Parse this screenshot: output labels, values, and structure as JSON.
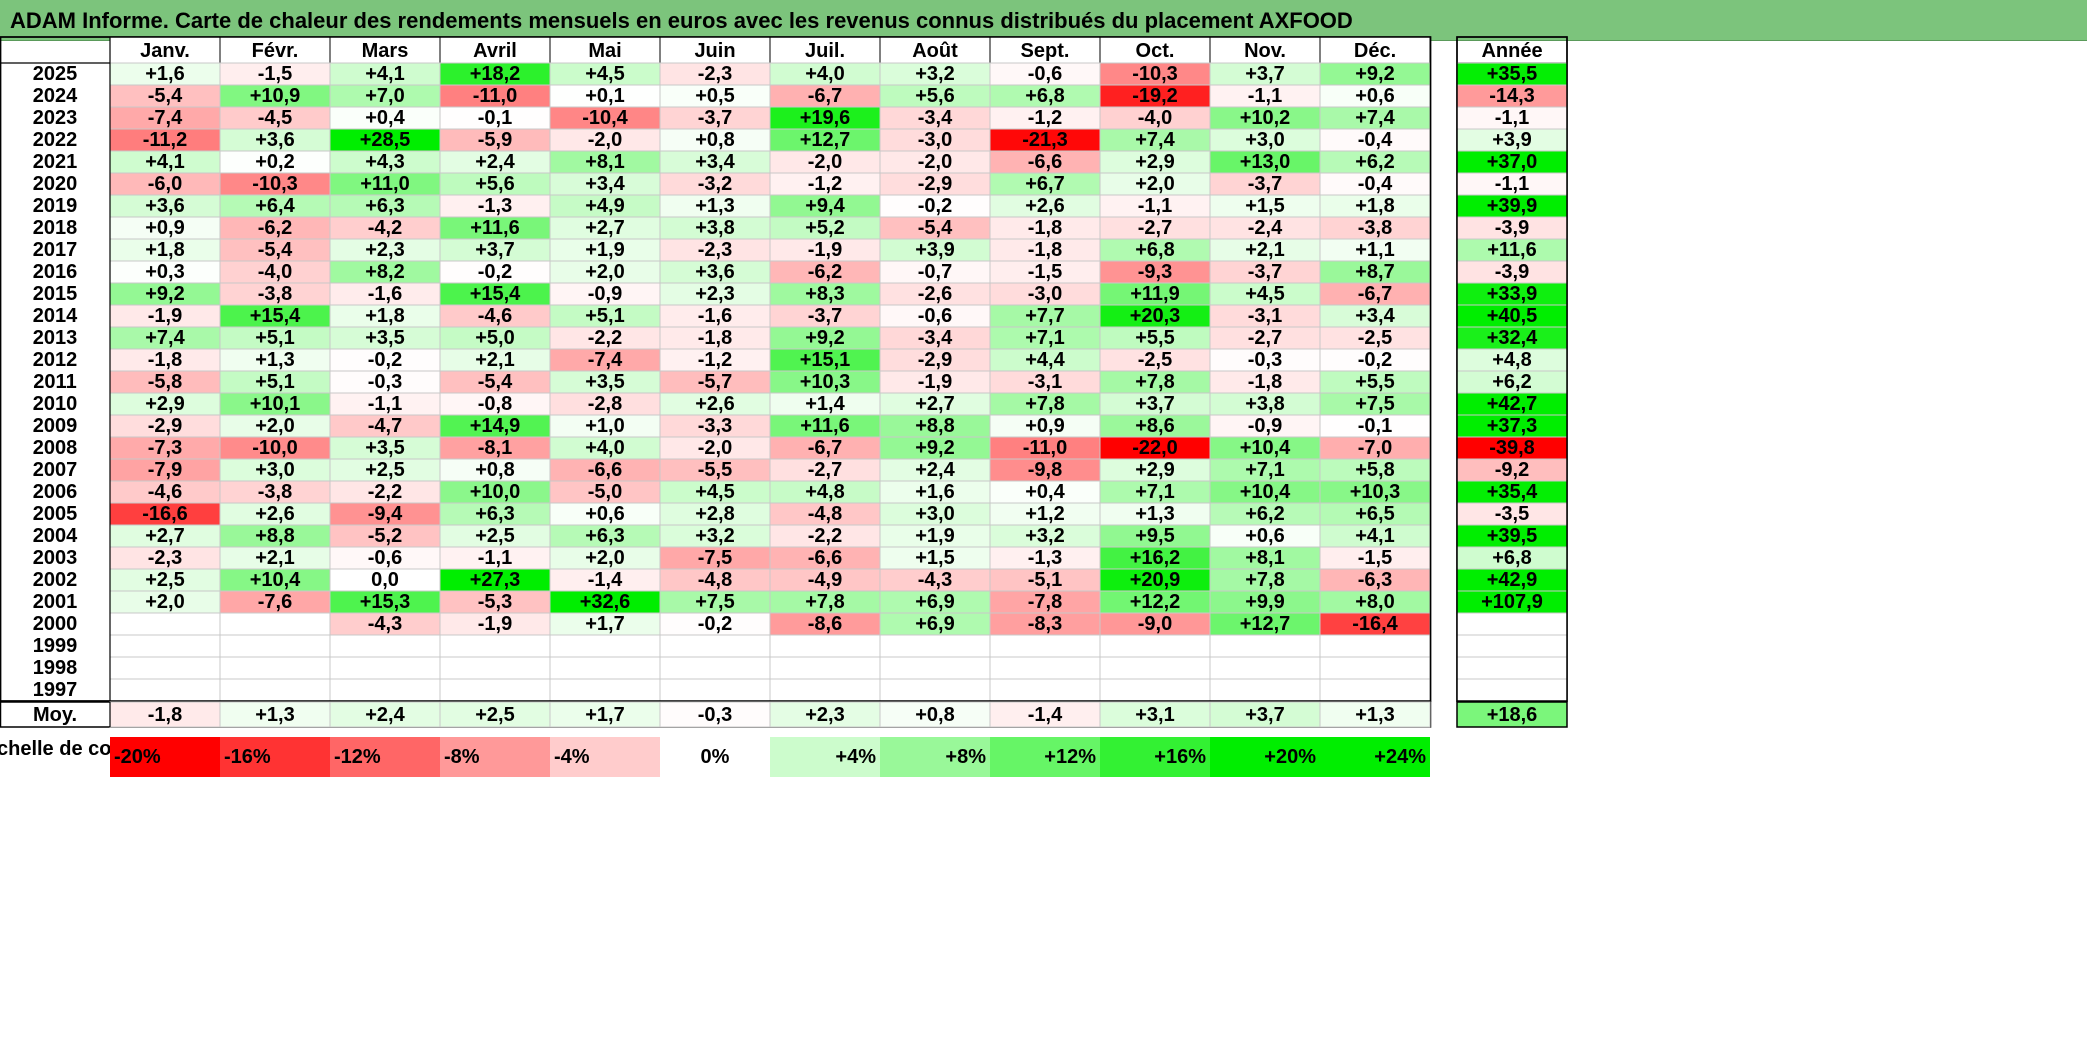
{
  "title": "ADAM Informe. Carte de chaleur des rendements mensuels en euros avec les revenus connus distribués du placement AXFOOD",
  "chart_data": {
    "type": "heatmap",
    "months": [
      "Janv.",
      "Févr.",
      "Mars",
      "Avril",
      "Mai",
      "Juin",
      "Juil.",
      "Août",
      "Sept.",
      "Oct.",
      "Nov.",
      "Déc."
    ],
    "annual_header": "Année",
    "avg_label": "Moy.",
    "rows": [
      {
        "year": "2025",
        "values": [
          "+1,6",
          "-1,5",
          "+4,1",
          "+18,2",
          "+4,5",
          "-2,3",
          "+4,0",
          "+3,2",
          "-0,6",
          "-10,3",
          "+3,7",
          "+9,2"
        ],
        "annual": "+35,5"
      },
      {
        "year": "2024",
        "values": [
          "-5,4",
          "+10,9",
          "+7,0",
          "-11,0",
          "+0,1",
          "+0,5",
          "-6,7",
          "+5,6",
          "+6,8",
          "-19,2",
          "-1,1",
          "+0,6"
        ],
        "annual": "-14,3"
      },
      {
        "year": "2023",
        "values": [
          "-7,4",
          "-4,5",
          "+0,4",
          "-0,1",
          "-10,4",
          "-3,7",
          "+19,6",
          "-3,4",
          "-1,2",
          "-4,0",
          "+10,2",
          "+7,4"
        ],
        "annual": "-1,1"
      },
      {
        "year": "2022",
        "values": [
          "-11,2",
          "+3,6",
          "+28,5",
          "-5,9",
          "-2,0",
          "+0,8",
          "+12,7",
          "-3,0",
          "-21,3",
          "+7,4",
          "+3,0",
          "-0,4"
        ],
        "annual": "+3,9"
      },
      {
        "year": "2021",
        "values": [
          "+4,1",
          "+0,2",
          "+4,3",
          "+2,4",
          "+8,1",
          "+3,4",
          "-2,0",
          "-2,0",
          "-6,6",
          "+2,9",
          "+13,0",
          "+6,2"
        ],
        "annual": "+37,0"
      },
      {
        "year": "2020",
        "values": [
          "-6,0",
          "-10,3",
          "+11,0",
          "+5,6",
          "+3,4",
          "-3,2",
          "-1,2",
          "-2,9",
          "+6,7",
          "+2,0",
          "-3,7",
          "-0,4"
        ],
        "annual": "-1,1"
      },
      {
        "year": "2019",
        "values": [
          "+3,6",
          "+6,4",
          "+6,3",
          "-1,3",
          "+4,9",
          "+1,3",
          "+9,4",
          "-0,2",
          "+2,6",
          "-1,1",
          "+1,5",
          "+1,8"
        ],
        "annual": "+39,9"
      },
      {
        "year": "2018",
        "values": [
          "+0,9",
          "-6,2",
          "-4,2",
          "+11,6",
          "+2,7",
          "+3,8",
          "+5,2",
          "-5,4",
          "-1,8",
          "-2,7",
          "-2,4",
          "-3,8"
        ],
        "annual": "-3,9"
      },
      {
        "year": "2017",
        "values": [
          "+1,8",
          "-5,4",
          "+2,3",
          "+3,7",
          "+1,9",
          "-2,3",
          "-1,9",
          "+3,9",
          "-1,8",
          "+6,8",
          "+2,1",
          "+1,1"
        ],
        "annual": "+11,6"
      },
      {
        "year": "2016",
        "values": [
          "+0,3",
          "-4,0",
          "+8,2",
          "-0,2",
          "+2,0",
          "+3,6",
          "-6,2",
          "-0,7",
          "-1,5",
          "-9,3",
          "-3,7",
          "+8,7"
        ],
        "annual": "-3,9"
      },
      {
        "year": "2015",
        "values": [
          "+9,2",
          "-3,8",
          "-1,6",
          "+15,4",
          "-0,9",
          "+2,3",
          "+8,3",
          "-2,6",
          "-3,0",
          "+11,9",
          "+4,5",
          "-6,7"
        ],
        "annual": "+33,9"
      },
      {
        "year": "2014",
        "values": [
          "-1,9",
          "+15,4",
          "+1,8",
          "-4,6",
          "+5,1",
          "-1,6",
          "-3,7",
          "-0,6",
          "+7,7",
          "+20,3",
          "-3,1",
          "+3,4"
        ],
        "annual": "+40,5"
      },
      {
        "year": "2013",
        "values": [
          "+7,4",
          "+5,1",
          "+3,5",
          "+5,0",
          "-2,2",
          "-1,8",
          "+9,2",
          "-3,4",
          "+7,1",
          "+5,5",
          "-2,7",
          "-2,5"
        ],
        "annual": "+32,4"
      },
      {
        "year": "2012",
        "values": [
          "-1,8",
          "+1,3",
          "-0,2",
          "+2,1",
          "-7,4",
          "-1,2",
          "+15,1",
          "-2,9",
          "+4,4",
          "-2,5",
          "-0,3",
          "-0,2"
        ],
        "annual": "+4,8"
      },
      {
        "year": "2011",
        "values": [
          "-5,8",
          "+5,1",
          "-0,3",
          "-5,4",
          "+3,5",
          "-5,7",
          "+10,3",
          "-1,9",
          "-3,1",
          "+7,8",
          "-1,8",
          "+5,5"
        ],
        "annual": "+6,2"
      },
      {
        "year": "2010",
        "values": [
          "+2,9",
          "+10,1",
          "-1,1",
          "-0,8",
          "-2,8",
          "+2,6",
          "+1,4",
          "+2,7",
          "+7,8",
          "+3,7",
          "+3,8",
          "+7,5"
        ],
        "annual": "+42,7"
      },
      {
        "year": "2009",
        "values": [
          "-2,9",
          "+2,0",
          "-4,7",
          "+14,9",
          "+1,0",
          "-3,3",
          "+11,6",
          "+8,8",
          "+0,9",
          "+8,6",
          "-0,9",
          "-0,1"
        ],
        "annual": "+37,3"
      },
      {
        "year": "2008",
        "values": [
          "-7,3",
          "-10,0",
          "+3,5",
          "-8,1",
          "+4,0",
          "-2,0",
          "-6,7",
          "+9,2",
          "-11,0",
          "-22,0",
          "+10,4",
          "-7,0"
        ],
        "annual": "-39,8"
      },
      {
        "year": "2007",
        "values": [
          "-7,9",
          "+3,0",
          "+2,5",
          "+0,8",
          "-6,6",
          "-5,5",
          "-2,7",
          "+2,4",
          "-9,8",
          "+2,9",
          "+7,1",
          "+5,8"
        ],
        "annual": "-9,2"
      },
      {
        "year": "2006",
        "values": [
          "-4,6",
          "-3,8",
          "-2,2",
          "+10,0",
          "-5,0",
          "+4,5",
          "+4,8",
          "+1,6",
          "+0,4",
          "+7,1",
          "+10,4",
          "+10,3"
        ],
        "annual": "+35,4"
      },
      {
        "year": "2005",
        "values": [
          "-16,6",
          "+2,6",
          "-9,4",
          "+6,3",
          "+0,6",
          "+2,8",
          "-4,8",
          "+3,0",
          "+1,2",
          "+1,3",
          "+6,2",
          "+6,5"
        ],
        "annual": "-3,5"
      },
      {
        "year": "2004",
        "values": [
          "+2,7",
          "+8,8",
          "-5,2",
          "+2,5",
          "+6,3",
          "+3,2",
          "-2,2",
          "+1,9",
          "+3,2",
          "+9,5",
          "+0,6",
          "+4,1"
        ],
        "annual": "+39,5"
      },
      {
        "year": "2003",
        "values": [
          "-2,3",
          "+2,1",
          "-0,6",
          "-1,1",
          "+2,0",
          "-7,5",
          "-6,6",
          "+1,5",
          "-1,3",
          "+16,2",
          "+8,1",
          "-1,5"
        ],
        "annual": "+6,8"
      },
      {
        "year": "2002",
        "values": [
          "+2,5",
          "+10,4",
          "0,0",
          "+27,3",
          "-1,4",
          "-4,8",
          "-4,9",
          "-4,3",
          "-5,1",
          "+20,9",
          "+7,8",
          "-6,3"
        ],
        "annual": "+42,9"
      },
      {
        "year": "2001",
        "values": [
          "+2,0",
          "-7,6",
          "+15,3",
          "-5,3",
          "+32,6",
          "+7,5",
          "+7,8",
          "+6,9",
          "-7,8",
          "+12,2",
          "+9,9",
          "+8,0"
        ],
        "annual": "+107,9"
      },
      {
        "year": "2000",
        "values": [
          "",
          "",
          "-4,3",
          "-1,9",
          "+1,7",
          "-0,2",
          "-8,6",
          "+6,9",
          "-8,3",
          "-9,0",
          "+12,7",
          "-16,4"
        ],
        "annual": ""
      },
      {
        "year": "1999",
        "values": [
          "",
          "",
          "",
          "",
          "",
          "",
          "",
          "",
          "",
          "",
          "",
          ""
        ],
        "annual": ""
      },
      {
        "year": "1998",
        "values": [
          "",
          "",
          "",
          "",
          "",
          "",
          "",
          "",
          "",
          "",
          "",
          ""
        ],
        "annual": ""
      },
      {
        "year": "1997",
        "values": [
          "",
          "",
          "",
          "",
          "",
          "",
          "",
          "",
          "",
          "",
          "",
          ""
        ],
        "annual": ""
      }
    ],
    "averages": [
      "-1,8",
      "+1,3",
      "+2,4",
      "+2,5",
      "+1,7",
      "-0,3",
      "+2,3",
      "+0,8",
      "-1,4",
      "+3,1",
      "+3,7",
      "+1,3"
    ],
    "average_annual": "+18,6",
    "scale_label": "Echelle de couleur",
    "scale": [
      "-20%",
      "-16%",
      "-12%",
      "-8%",
      "-4%",
      "0%",
      "+4%",
      "+8%",
      "+12%",
      "+16%",
      "+20%",
      "+24%"
    ],
    "colors": {
      "negative_max": "#ff0000",
      "neutral": "#ffffff",
      "positive_max": "#00ee00",
      "title_bg": "#7cc47c"
    }
  }
}
